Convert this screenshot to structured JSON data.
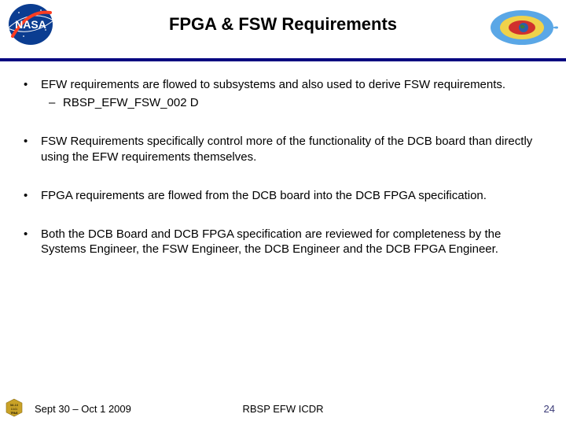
{
  "title": "FPGA & FSW Requirements",
  "bullets": [
    {
      "text": "EFW requirements are flowed to subsystems and also used to derive FSW requirements.",
      "sub": [
        "RBSP_EFW_FSW_002 D"
      ]
    },
    {
      "text": "FSW Requirements specifically control more of the functionality of the DCB board than directly using the EFW requirements themselves.",
      "sub": []
    },
    {
      "text": "FPGA requirements are flowed from the DCB board into the DCB FPGA specification.",
      "sub": []
    },
    {
      "text": "Both the DCB Board and DCB FPGA specification are reviewed for completeness by the Systems Engineer, the FSW Engineer, the DCB Engineer and the DCB FPGA Engineer.",
      "sub": []
    }
  ],
  "footer": {
    "date": "Sept 30 – Oct 1 2009",
    "center": "RBSP EFW ICDR",
    "page": "24",
    "page_color": "#3c3c78"
  },
  "colors": {
    "rule": "#000080",
    "nasa_blue": "#0b3d91",
    "nasa_red": "#fc3d21",
    "badge_gold": "#c9a227",
    "magneto1": "#5aa7e6",
    "magneto2": "#f0d24a",
    "magneto3": "#d0312d",
    "earth_blue": "#2b5faa",
    "earth_green": "#3f7d3a"
  }
}
